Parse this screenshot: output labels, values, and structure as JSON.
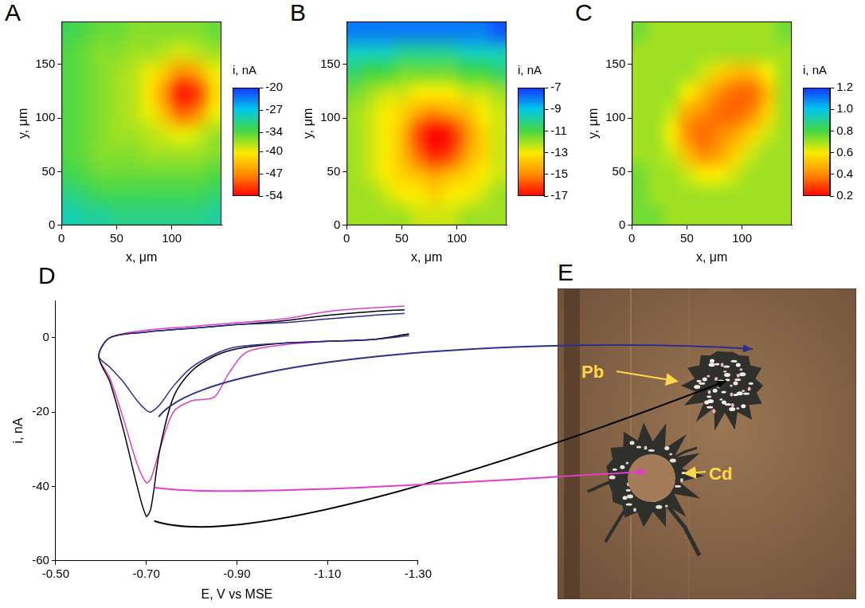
{
  "chart_data": [
    {
      "panel": "A",
      "type": "heatmap",
      "x_label": "x, μm",
      "y_label": "y, μm",
      "xlim": [
        0,
        145
      ],
      "ylim": [
        0,
        190
      ],
      "xticks": [
        0,
        50,
        100
      ],
      "yticks": [
        0,
        50,
        100,
        150
      ],
      "x": [
        7.25,
        21.75,
        36.25,
        50.75,
        65.25,
        79.75,
        94.25,
        108.75,
        123.25,
        137.75
      ],
      "y": [
        9.5,
        28.5,
        47.5,
        66.5,
        85.5,
        104.5,
        123.5,
        142.5,
        161.5,
        180.5
      ],
      "z": [
        [
          -29,
          -30,
          -30,
          -31,
          -31,
          -31,
          -31,
          -31,
          -31,
          -30
        ],
        [
          -31,
          -32,
          -33,
          -33,
          -33,
          -33,
          -33,
          -33,
          -33,
          -32
        ],
        [
          -33,
          -34,
          -35,
          -35,
          -35,
          -35,
          -35,
          -35,
          -35,
          -34
        ],
        [
          -34,
          -35,
          -36,
          -36,
          -36,
          -37,
          -37,
          -37,
          -37,
          -36
        ],
        [
          -34,
          -35,
          -36,
          -37,
          -37,
          -38,
          -39,
          -40,
          -39,
          -37
        ],
        [
          -34,
          -35,
          -36,
          -37,
          -38,
          -40,
          -44,
          -49,
          -47,
          -40
        ],
        [
          -34,
          -35,
          -36,
          -37,
          -38,
          -41,
          -47,
          -53,
          -51,
          -42
        ],
        [
          -34,
          -35,
          -36,
          -37,
          -38,
          -40,
          -43,
          -47,
          -45,
          -40
        ],
        [
          -34,
          -35,
          -36,
          -36,
          -37,
          -37,
          -38,
          -39,
          -38,
          -37
        ],
        [
          -33,
          -34,
          -35,
          -35,
          -36,
          -36,
          -36,
          -36,
          -36,
          -35
        ]
      ],
      "colorbar": {
        "label": "i, nA",
        "range": [
          -54,
          -20
        ],
        "ticks": [
          -20,
          -27,
          -34,
          -40,
          -47,
          -54
        ]
      }
    },
    {
      "panel": "B",
      "type": "heatmap",
      "x_label": "x, μm",
      "y_label": "y, μm",
      "xlim": [
        0,
        145
      ],
      "ylim": [
        0,
        190
      ],
      "xticks": [
        0,
        50,
        100
      ],
      "yticks": [
        0,
        50,
        100,
        150
      ],
      "x": [
        7.25,
        21.75,
        36.25,
        50.75,
        65.25,
        79.75,
        94.25,
        108.75,
        123.25,
        137.75
      ],
      "y": [
        9.5,
        28.5,
        47.5,
        66.5,
        85.5,
        104.5,
        123.5,
        142.5,
        161.5,
        180.5
      ],
      "z": [
        [
          -12,
          -12,
          -12,
          -12,
          -12.5,
          -12.5,
          -12.5,
          -12,
          -12,
          -12
        ],
        [
          -12,
          -12,
          -12.5,
          -13,
          -13,
          -13.5,
          -13,
          -13,
          -12.5,
          -12
        ],
        [
          -12,
          -12.5,
          -13,
          -13.5,
          -14,
          -14.5,
          -14,
          -13.5,
          -13,
          -12.5
        ],
        [
          -12,
          -12.5,
          -13,
          -14,
          -15.5,
          -16.5,
          -16,
          -14.5,
          -13.5,
          -12.5
        ],
        [
          -12,
          -12.5,
          -13,
          -14,
          -16,
          -17,
          -16.5,
          -15,
          -13.5,
          -12.5
        ],
        [
          -12,
          -12.5,
          -13,
          -13.5,
          -14.5,
          -15,
          -14.5,
          -14,
          -13,
          -12.5
        ],
        [
          -11.5,
          -12,
          -12.5,
          -12.5,
          -13,
          -13,
          -13,
          -12.5,
          -12.5,
          -12
        ],
        [
          -10.5,
          -11,
          -11,
          -11.5,
          -11.5,
          -11.5,
          -11.5,
          -11,
          -11,
          -10.5
        ],
        [
          -9.5,
          -9.5,
          -9.5,
          -10,
          -10,
          -10,
          -10,
          -9.5,
          -9.5,
          -9.5
        ],
        [
          -8,
          -8,
          -8,
          -8,
          -8,
          -8,
          -8,
          -8,
          -8,
          -7.5
        ]
      ],
      "colorbar": {
        "label": "i, nA",
        "range": [
          -17,
          -7
        ],
        "ticks": [
          -7,
          -9,
          -11,
          -13,
          -15,
          -17
        ]
      }
    },
    {
      "panel": "C",
      "type": "heatmap",
      "x_label": "x, μm",
      "y_label": "y, μm",
      "xlim": [
        0,
        145
      ],
      "ylim": [
        0,
        190
      ],
      "xticks": [
        0,
        50,
        100
      ],
      "yticks": [
        0,
        50,
        100,
        150
      ],
      "x": [
        7.25,
        21.75,
        36.25,
        50.75,
        65.25,
        79.75,
        94.25,
        108.75,
        123.25,
        137.75
      ],
      "y": [
        9.5,
        28.5,
        47.5,
        66.5,
        85.5,
        104.5,
        123.5,
        142.5,
        161.5,
        180.5
      ],
      "z": [
        [
          0.75,
          0.75,
          0.7,
          0.7,
          0.7,
          0.7,
          0.7,
          0.7,
          0.7,
          0.7
        ],
        [
          0.75,
          0.7,
          0.7,
          0.7,
          0.7,
          0.7,
          0.7,
          0.7,
          0.7,
          0.7
        ],
        [
          0.75,
          0.7,
          0.7,
          0.65,
          0.6,
          0.6,
          0.65,
          0.7,
          0.7,
          0.7
        ],
        [
          0.7,
          0.7,
          0.65,
          0.5,
          0.4,
          0.45,
          0.55,
          0.65,
          0.7,
          0.7
        ],
        [
          0.7,
          0.7,
          0.6,
          0.4,
          0.35,
          0.4,
          0.45,
          0.55,
          0.65,
          0.7
        ],
        [
          0.7,
          0.7,
          0.65,
          0.45,
          0.4,
          0.35,
          0.35,
          0.4,
          0.55,
          0.7
        ],
        [
          0.7,
          0.7,
          0.7,
          0.6,
          0.5,
          0.4,
          0.35,
          0.35,
          0.5,
          0.7
        ],
        [
          0.7,
          0.7,
          0.7,
          0.7,
          0.65,
          0.55,
          0.5,
          0.5,
          0.6,
          0.7
        ],
        [
          0.7,
          0.7,
          0.7,
          0.7,
          0.7,
          0.7,
          0.7,
          0.7,
          0.7,
          0.7
        ],
        [
          0.75,
          0.7,
          0.7,
          0.7,
          0.7,
          0.7,
          0.7,
          0.7,
          0.7,
          0.75
        ]
      ],
      "colorbar": {
        "label": "i, nA",
        "range": [
          0.2,
          1.2
        ],
        "ticks": [
          1.2,
          {
            "value": 1,
            "label": "1.0"
          },
          0.8,
          0.6,
          0.4,
          0.2
        ]
      }
    },
    {
      "panel": "D",
      "type": "line",
      "x_label": "E, V vs MSE",
      "y_label": "i, nA",
      "xlim": [
        -0.5,
        -1.3
      ],
      "xticks": [
        {
          "value": -0.5,
          "label": "-0.50"
        },
        {
          "value": -0.7,
          "label": "-0.70"
        },
        {
          "value": -0.9,
          "label": "-0.90"
        },
        {
          "value": -1.1,
          "label": "-1.10"
        },
        {
          "value": -1.3,
          "label": "-1.30"
        }
      ],
      "ylim": [
        -60,
        10
      ],
      "yticks": [
        -60,
        -40,
        -20,
        0
      ],
      "grid": false,
      "series": [
        {
          "color": "#2e2e8c",
          "x": [
            -1.27,
            -1.2,
            -1.1,
            -1.0,
            -0.9,
            -0.8,
            -0.7,
            -0.62,
            -0.595,
            -0.62,
            -0.65,
            -0.68,
            -0.7,
            -0.71,
            -0.73,
            -0.76,
            -0.8,
            -0.85,
            -0.9,
            -1.0,
            -1.1,
            -1.2,
            -1.28
          ],
          "values": [
            6.5,
            6,
            5,
            4,
            3.5,
            2.5,
            1.5,
            0,
            -5,
            -8,
            -12,
            -17,
            -19.5,
            -20,
            -18,
            -13,
            -8,
            -4.5,
            -2.5,
            -1.5,
            -1,
            -0.5,
            0.5
          ]
        },
        {
          "color": "#000000",
          "x": [
            -1.27,
            -1.2,
            -1.1,
            -1.0,
            -0.9,
            -0.8,
            -0.7,
            -0.62,
            -0.595,
            -0.62,
            -0.65,
            -0.68,
            -0.7,
            -0.71,
            -0.73,
            -0.76,
            -0.8,
            -0.85,
            -0.9,
            -1.0,
            -1.1,
            -1.2,
            -1.28
          ],
          "values": [
            7.5,
            7,
            6,
            4.5,
            3.5,
            2.5,
            1.5,
            0,
            -5,
            -12,
            -25,
            -40,
            -48,
            -46,
            -30,
            -16,
            -9,
            -5,
            -3,
            -1.5,
            -1,
            -0.5,
            1
          ]
        },
        {
          "color": "#e040c8",
          "x": [
            -1.27,
            -1.2,
            -1.1,
            -1.0,
            -0.9,
            -0.8,
            -0.7,
            -0.62,
            -0.595,
            -0.62,
            -0.65,
            -0.68,
            -0.7,
            -0.71,
            -0.73,
            -0.76,
            -0.8,
            -0.85,
            -0.88,
            -0.92,
            -1.0,
            -1.1,
            -1.2,
            -1.28
          ],
          "values": [
            8.5,
            8,
            7,
            5,
            4,
            3,
            2,
            0,
            -5,
            -11,
            -22,
            -34,
            -39,
            -38,
            -30,
            -20,
            -17,
            -16,
            -10,
            -4,
            -2,
            -1,
            -0.5,
            1
          ]
        }
      ]
    }
  ],
  "image": {
    "panel": "E",
    "labels": [
      "Pb",
      "Cd"
    ]
  }
}
